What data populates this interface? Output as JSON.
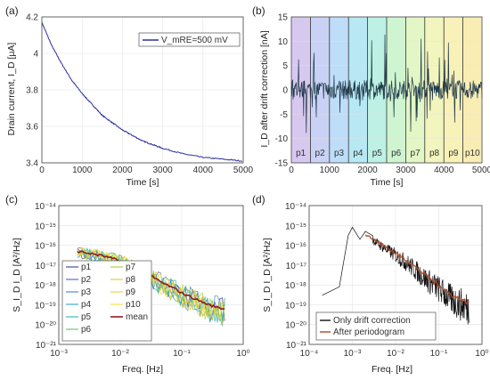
{
  "chart_data": [
    {
      "panel_label": "(a)",
      "type": "line",
      "xlabel": "Time [s]",
      "ylabel": "Drain current, I_D [μA]",
      "xlim": [
        0,
        5000
      ],
      "ylim": [
        3.4,
        4.2
      ],
      "xticks": [
        "0",
        "1000",
        "2000",
        "3000",
        "4000",
        "5000"
      ],
      "yticks": [
        "3.4",
        "3.6",
        "3.8",
        "4",
        "4.2"
      ],
      "grid": true,
      "legend": {
        "position": "top-right",
        "entries": [
          "V_mRE=500 mV"
        ]
      },
      "series": [
        {
          "name": "V_mRE=500 mV",
          "color": "#2b2fa0",
          "x": [
            0,
            250,
            500,
            750,
            1000,
            1250,
            1500,
            1750,
            2000,
            2250,
            2500,
            2750,
            3000,
            3500,
            4000,
            4500,
            5000
          ],
          "y": [
            4.17,
            4.04,
            3.94,
            3.85,
            3.78,
            3.72,
            3.66,
            3.62,
            3.58,
            3.55,
            3.52,
            3.5,
            3.48,
            3.45,
            3.43,
            3.42,
            3.41
          ]
        }
      ]
    },
    {
      "panel_label": "(b)",
      "type": "line",
      "xlabel": "Time [s]",
      "ylabel": "I_D after drift correction [nA]",
      "xlim": [
        0,
        5000
      ],
      "ylim": [
        -15,
        15
      ],
      "xticks": [
        "0",
        "1000",
        "2000",
        "3000",
        "4000",
        "5000"
      ],
      "yticks": [
        "-15",
        "-10",
        "-5",
        "0",
        "5",
        "10",
        "15"
      ],
      "grid": true,
      "segments": [
        "p1",
        "p2",
        "p3",
        "p4",
        "p5",
        "p6",
        "p7",
        "p8",
        "p9",
        "p10"
      ],
      "segment_colors": [
        "#c9b6ea",
        "#b7c3f1",
        "#a8d2f6",
        "#9fe0ef",
        "#a6ecd9",
        "#bff0c0",
        "#d9f3b1",
        "#eef2a8",
        "#f6eca0",
        "#f8e79a"
      ],
      "trace_color": "#1f3a4a",
      "noise_amplitude": 4,
      "spike_amplitude": 12
    },
    {
      "panel_label": "(c)",
      "type": "line",
      "xlabel": "Freq. [Hz]",
      "ylabel": "S_I_D I_D [A²/Hz]",
      "xscale": "log",
      "yscale": "log",
      "xlim": [
        0.001,
        1
      ],
      "ylim": [
        1e-21,
        1e-14
      ],
      "xticks": [
        "10⁻³",
        "10⁻²",
        "10⁻¹",
        "10⁰"
      ],
      "yticks": [
        "10⁻²¹",
        "10⁻²⁰",
        "10⁻¹⁹",
        "10⁻¹⁸",
        "10⁻¹⁷",
        "10⁻¹⁶",
        "10⁻¹⁵",
        "10⁻¹⁴"
      ],
      "grid": true,
      "legend": {
        "position": "bottom-left",
        "entries": [
          "p1",
          "p2",
          "p3",
          "p4",
          "p5",
          "p6",
          "p7",
          "p8",
          "p9",
          "p10",
          "mean"
        ]
      },
      "series": [
        {
          "name": "p1",
          "color": "#3a3f8f"
        },
        {
          "name": "p2",
          "color": "#4d5fc2"
        },
        {
          "name": "p3",
          "color": "#3f86c9"
        },
        {
          "name": "p4",
          "color": "#2fa4c6"
        },
        {
          "name": "p5",
          "color": "#2bb9a8"
        },
        {
          "name": "p6",
          "color": "#5dc26b"
        },
        {
          "name": "p7",
          "color": "#a7cc3f"
        },
        {
          "name": "p8",
          "color": "#d6cf2c"
        },
        {
          "name": "p9",
          "color": "#eed02a"
        },
        {
          "name": "p10",
          "color": "#f0e03a"
        },
        {
          "name": "mean",
          "color": "#8c1d1d"
        }
      ],
      "mean_curve": {
        "x": [
          0.002,
          0.003,
          0.005,
          0.008,
          0.01,
          0.02,
          0.03,
          0.05,
          0.08,
          0.1,
          0.2,
          0.3,
          0.5
        ],
        "y": [
          5e-17,
          4e-17,
          3e-17,
          2e-17,
          1.5e-17,
          6e-18,
          3e-18,
          1.2e-18,
          6e-19,
          4e-19,
          1.5e-19,
          9e-20,
          6e-20
        ]
      }
    },
    {
      "panel_label": "(d)",
      "type": "line",
      "xlabel": "Freq. [Hz]",
      "ylabel": "S_I_D I_D [A²/Hz]",
      "xscale": "log",
      "yscale": "log",
      "xlim": [
        0.0001,
        1
      ],
      "ylim": [
        1e-21,
        1e-14
      ],
      "xticks": [
        "10⁻⁴",
        "10⁻³",
        "10⁻²",
        "10⁻¹",
        "10⁰"
      ],
      "yticks": [
        "10⁻²¹",
        "10⁻²⁰",
        "10⁻¹⁹",
        "10⁻¹⁸",
        "10⁻¹⁷",
        "10⁻¹⁶",
        "10⁻¹⁵",
        "10⁻¹⁴"
      ],
      "grid": true,
      "legend": {
        "position": "bottom-right",
        "entries": [
          "Only drift correction",
          "After periodogram"
        ]
      },
      "series": [
        {
          "name": "Only drift correction",
          "color": "#111111"
        },
        {
          "name": "After periodogram",
          "color": "#b04a2a"
        }
      ],
      "low_freq_curve": {
        "x": [
          0.0002,
          0.0005,
          0.0008,
          0.001,
          0.0015,
          0.002,
          0.003
        ],
        "y": [
          3e-19,
          8e-19,
          3e-16,
          8e-16,
          2e-16,
          5e-16,
          3e-16
        ]
      },
      "trend_curve": {
        "x": [
          0.002,
          0.003,
          0.005,
          0.01,
          0.02,
          0.05,
          0.1,
          0.2,
          0.5
        ],
        "y": [
          4e-16,
          2e-16,
          1e-16,
          4e-17,
          1.5e-17,
          3e-18,
          1e-18,
          3e-19,
          1.2e-19
        ]
      }
    }
  ]
}
